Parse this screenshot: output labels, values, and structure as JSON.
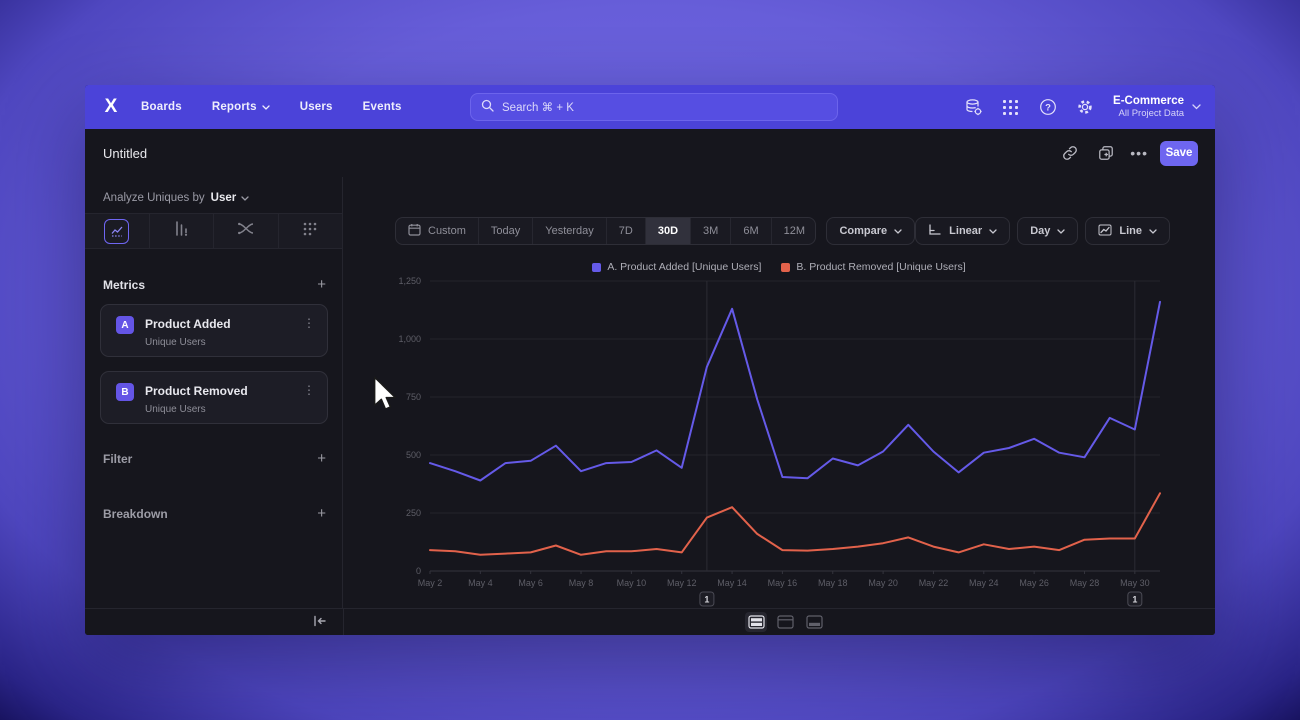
{
  "nav": {
    "logo_glyph": "X",
    "items": [
      "Boards",
      "Reports",
      "Users",
      "Events"
    ],
    "search_placeholder": "Search  ⌘ + K",
    "project": {
      "name": "E-Commerce",
      "subtitle": "All Project Data"
    }
  },
  "titlebar": {
    "title": "Untitled",
    "save_label": "Save"
  },
  "sidebar": {
    "analyze_prefix": "Analyze Uniques by",
    "analyze_value": "User",
    "metrics_header": "Metrics",
    "metrics": [
      {
        "badge": "A",
        "name": "Product Added",
        "sub": "Unique Users"
      },
      {
        "badge": "B",
        "name": "Product Removed",
        "sub": "Unique Users"
      }
    ],
    "filter_label": "Filter",
    "breakdown_label": "Breakdown"
  },
  "toolbar": {
    "ranges": [
      "Custom",
      "Today",
      "Yesterday",
      "7D",
      "30D",
      "3M",
      "6M",
      "12M"
    ],
    "selected_range": "30D",
    "compare_label": "Compare",
    "scale_label": "Linear",
    "interval_label": "Day",
    "chart_type_label": "Line"
  },
  "icons": {
    "nav": [
      "data-management-icon",
      "apps-grid-icon",
      "help-icon",
      "settings-gear-icon"
    ],
    "titlebar": [
      "link-icon",
      "duplicate-icon",
      "more-ellipsis-icon"
    ],
    "sidebar_tabs": [
      "insights-chart-icon",
      "bar-chart-icon",
      "flows-icon",
      "dots-grid-icon"
    ],
    "view_toggles": [
      "chart-and-table-view-icon",
      "chart-only-view-icon",
      "table-only-view-icon"
    ]
  },
  "colors": {
    "nav_purple": "#4b43d9",
    "accent": "#6e66f0",
    "series_a": "#655ae8",
    "series_b": "#e2624b",
    "background_dark": "#16161d"
  },
  "chart_data": {
    "type": "line",
    "title": "",
    "xlabel": "",
    "ylabel": "",
    "x": [
      "May 2",
      "May 3",
      "May 4",
      "May 5",
      "May 6",
      "May 7",
      "May 8",
      "May 9",
      "May 10",
      "May 11",
      "May 12",
      "May 13",
      "May 14",
      "May 15",
      "May 16",
      "May 17",
      "May 18",
      "May 19",
      "May 20",
      "May 21",
      "May 22",
      "May 23",
      "May 24",
      "May 25",
      "May 26",
      "May 27",
      "May 28",
      "May 29",
      "May 30",
      "May 31"
    ],
    "series": [
      {
        "name": "A. Product Added [Unique Users]",
        "color": "#655ae8",
        "values": [
          465,
          430,
          390,
          465,
          475,
          540,
          430,
          465,
          470,
          520,
          445,
          880,
          1130,
          740,
          405,
          400,
          485,
          455,
          515,
          630,
          515,
          425,
          510,
          530,
          570,
          510,
          490,
          660,
          610,
          1160
        ]
      },
      {
        "name": "B. Product Removed [Unique Users]",
        "color": "#e2624b",
        "values": [
          90,
          85,
          70,
          75,
          80,
          110,
          70,
          85,
          85,
          95,
          80,
          230,
          275,
          160,
          90,
          88,
          95,
          105,
          120,
          145,
          105,
          80,
          115,
          95,
          105,
          90,
          135,
          140,
          140,
          335
        ]
      }
    ],
    "ylim": [
      0,
      1250
    ],
    "y_ticks": [
      0,
      250,
      500,
      750,
      1000,
      1250
    ],
    "y_tick_labels": [
      "0",
      "250",
      "500",
      "750",
      "1,000",
      "1,250"
    ],
    "x_tick_every": 2,
    "annotations": [
      {
        "x_index": 11,
        "label": "1"
      },
      {
        "x_index": 28,
        "label": "1"
      }
    ],
    "grid": true,
    "legend_position": "top"
  }
}
